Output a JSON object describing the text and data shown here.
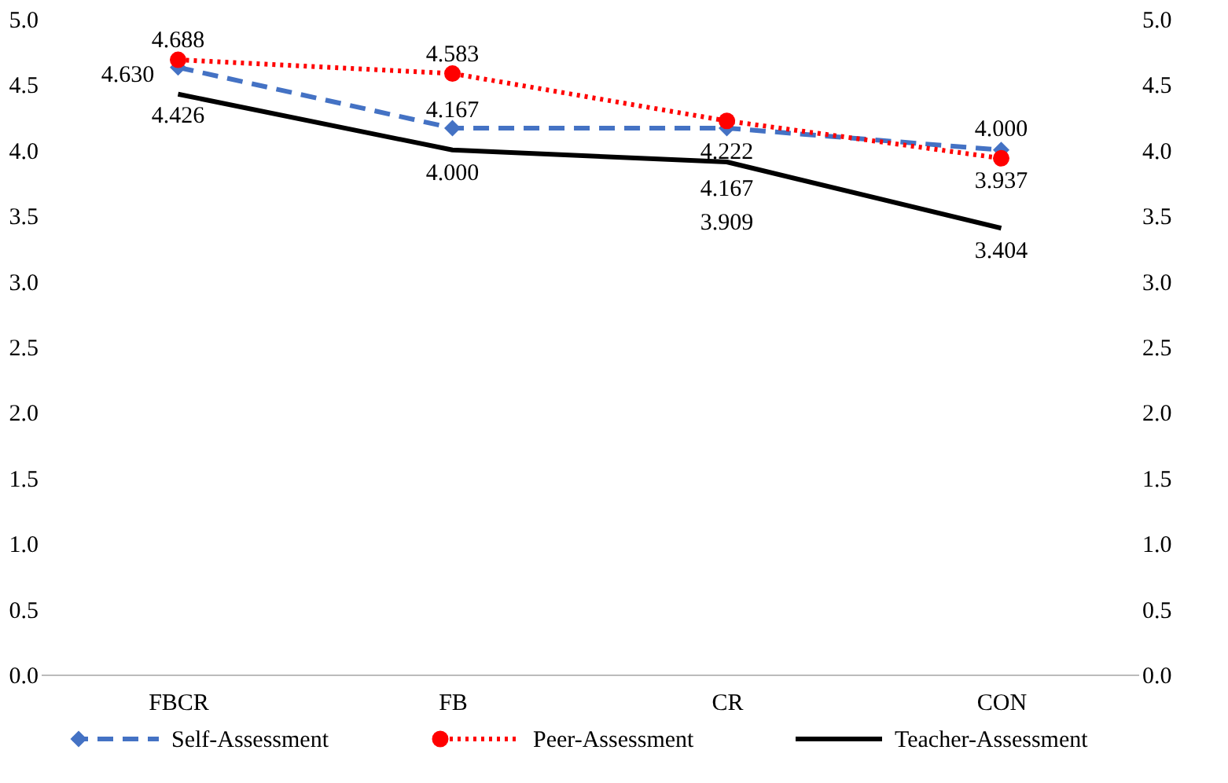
{
  "chart_data": {
    "type": "line",
    "categories": [
      "FBCR",
      "FB",
      "CR",
      "CON"
    ],
    "series": [
      {
        "name": "Self-Assessment",
        "color": "#4472c4",
        "line_style": "dashed",
        "marker": "diamond",
        "values": [
          4.63,
          4.167,
          4.167,
          4.0
        ],
        "value_labels": [
          "4.630",
          "4.167",
          "4.167",
          "4.000"
        ]
      },
      {
        "name": "Peer-Assessment",
        "color": "#ff0000",
        "line_style": "dotted",
        "marker": "circle",
        "values": [
          4.688,
          4.583,
          4.222,
          3.937
        ],
        "value_labels": [
          "4.688",
          "4.583",
          "4.222",
          "3.937"
        ]
      },
      {
        "name": "Teacher-Assessment",
        "color": "#000000",
        "line_style": "solid",
        "marker": "none",
        "values": [
          4.426,
          4.0,
          3.909,
          3.404
        ],
        "value_labels": [
          "4.426",
          "4.000",
          "3.909",
          "3.404"
        ]
      }
    ],
    "ylim": [
      0,
      5
    ],
    "yticks": [
      {
        "value": 0,
        "label": "0.0"
      },
      {
        "value": 0.5,
        "label": "0.5"
      },
      {
        "value": 1,
        "label": "1.0"
      },
      {
        "value": 1.5,
        "label": "1.5"
      },
      {
        "value": 2,
        "label": "2.0"
      },
      {
        "value": 2.5,
        "label": "2.5"
      },
      {
        "value": 3,
        "label": "3.0"
      },
      {
        "value": 3.5,
        "label": "3.5"
      },
      {
        "value": 4,
        "label": "4.0"
      },
      {
        "value": 4.5,
        "label": "4.5"
      },
      {
        "value": 5,
        "label": "5.0"
      }
    ],
    "y2lim": [
      0,
      5
    ],
    "y2ticks": [
      {
        "value": 0,
        "label": "0.0"
      },
      {
        "value": 0.5,
        "label": "0.5"
      },
      {
        "value": 1,
        "label": "1.0"
      },
      {
        "value": 1.5,
        "label": "1.5"
      },
      {
        "value": 2,
        "label": "2.0"
      },
      {
        "value": 2.5,
        "label": "2.5"
      },
      {
        "value": 3,
        "label": "3.0"
      },
      {
        "value": 3.5,
        "label": "3.5"
      },
      {
        "value": 4,
        "label": "4.0"
      },
      {
        "value": 4.5,
        "label": "4.5"
      },
      {
        "value": 5,
        "label": "5.0"
      }
    ],
    "grid": false,
    "legend": "bottom"
  }
}
